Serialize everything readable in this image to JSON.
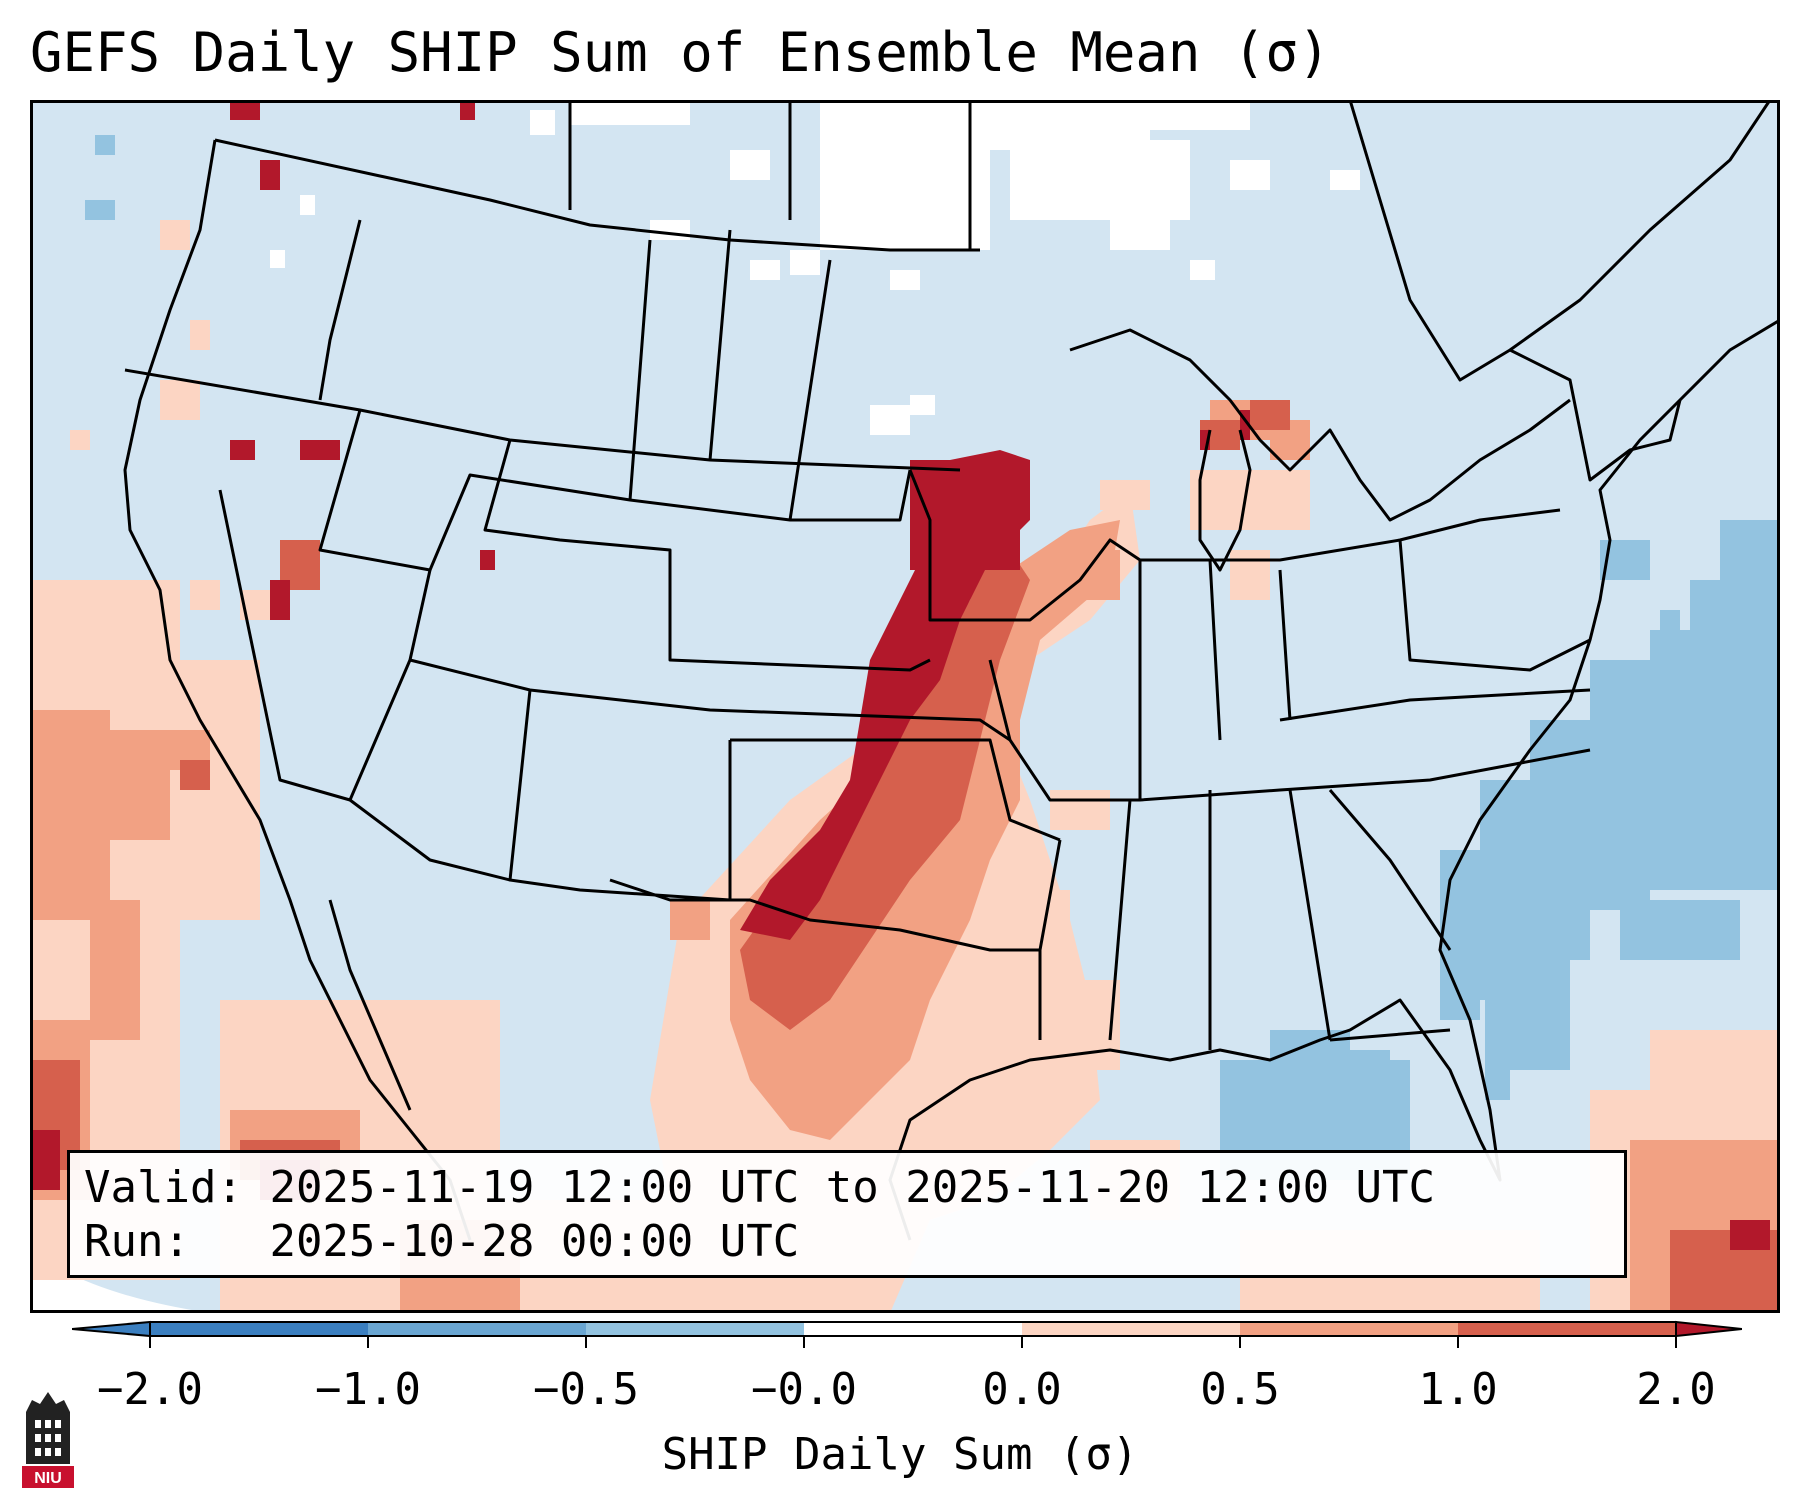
{
  "title": "GEFS Daily SHIP Sum of Ensemble Mean (σ)",
  "info_box": {
    "valid_label": "Valid:",
    "valid_text": "2025-11-19 12:00 UTC to 2025-11-20 12:00 UTC",
    "run_label": "Run:  ",
    "run_text": "2025-10-28 00:00 UTC"
  },
  "colorbar": {
    "label": "SHIP Daily Sum (σ)",
    "ticks": [
      "−2.0",
      "−1.0",
      "−0.5",
      "−0.0",
      "0.0",
      "0.5",
      "1.0",
      "2.0"
    ],
    "colors": [
      "#3b7fc0",
      "#6aa6d2",
      "#93c3e0",
      "#d3e5f2",
      "#ffffff",
      "#fcd5c3",
      "#f2a183",
      "#d6604d",
      "#b2182b"
    ]
  },
  "logo": {
    "text": "NIU",
    "color": "#c8102e"
  }
}
